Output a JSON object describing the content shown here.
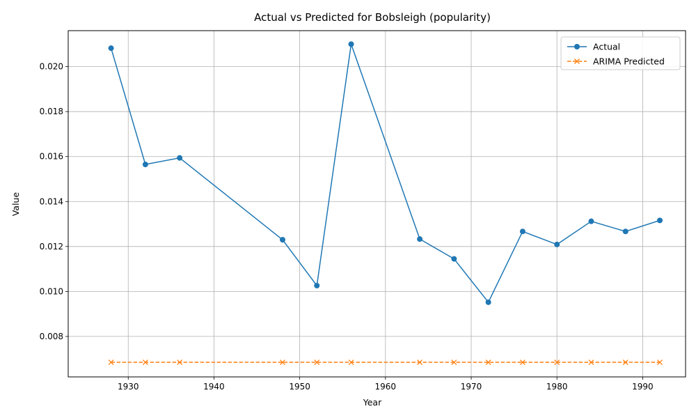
{
  "chart_data": {
    "type": "line",
    "title": "Actual vs Predicted for Bobsleigh (popularity)",
    "xlabel": "Year",
    "ylabel": "Value",
    "xlim": [
      1923,
      1995
    ],
    "ylim": [
      0.0062,
      0.0216
    ],
    "x_ticks": [
      1930,
      1940,
      1950,
      1960,
      1970,
      1980,
      1990
    ],
    "y_ticks": [
      0.008,
      0.01,
      0.012,
      0.014,
      0.016,
      0.018,
      0.02
    ],
    "grid": true,
    "legend_position": "top-right",
    "x": [
      1928,
      1932,
      1936,
      1948,
      1952,
      1956,
      1964,
      1968,
      1972,
      1976,
      1980,
      1984,
      1988,
      1992
    ],
    "series": [
      {
        "name": "Actual",
        "color": "#1f77b4",
        "line_style": "solid",
        "marker": "circle",
        "values": [
          0.02082,
          0.01565,
          0.01594,
          0.0123,
          0.01026,
          0.021,
          0.01233,
          0.01145,
          0.00952,
          0.01267,
          0.01209,
          0.01312,
          0.01267,
          0.01316
        ]
      },
      {
        "name": "ARIMA Predicted",
        "color": "#ff7f0e",
        "line_style": "dashed",
        "marker": "x",
        "values": [
          0.00685,
          0.00685,
          0.00685,
          0.00685,
          0.00685,
          0.00685,
          0.00685,
          0.00685,
          0.00685,
          0.00685,
          0.00685,
          0.00685,
          0.00685,
          0.00685
        ]
      }
    ]
  }
}
